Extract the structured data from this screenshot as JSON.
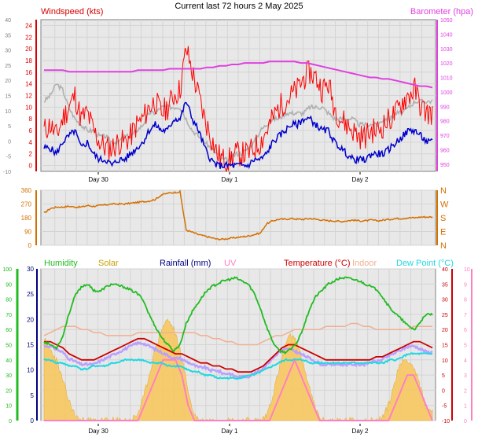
{
  "title": "Current last 72 hours 2 May 2025",
  "colors": {
    "windspeed": "#d80000",
    "windavg": "#0000cc",
    "gust": "#ff0000",
    "baro": "#e040e0",
    "baro_axis": "#e040e0",
    "wind_axis": "#d80000",
    "winddir": "#d47000",
    "humidity": "#22bb22",
    "solar": "#c8a000",
    "solar_fill": "#f8c860",
    "rainfall": "#000080",
    "uv": "#ff80c0",
    "temperature": "#cc0000",
    "indoor": "#f0b090",
    "dewpoint": "#20d8e0",
    "feels": "#b8a0ff",
    "grey_series": "#b0b0b0"
  },
  "chart_data": [
    {
      "type": "line",
      "panel": "wind-baro",
      "labels": {
        "left": "Windspeed (kts)",
        "right": "Barometer (hpa)"
      },
      "x_ticks": [
        "Day 30",
        "Day 1",
        "Day 2"
      ],
      "y_left_a": {
        "ticks": [
          40,
          35,
          30,
          25,
          20,
          15,
          10,
          5,
          0,
          -5,
          -10
        ],
        "range": [
          -10,
          40
        ]
      },
      "y_left_b": {
        "ticks": [
          24,
          22,
          20,
          18,
          16,
          14,
          12,
          10,
          8,
          6,
          4,
          2,
          0
        ],
        "range": [
          -1,
          25
        ]
      },
      "y_right": {
        "ticks": [
          1050,
          1040,
          1030,
          1020,
          1010,
          1000,
          990,
          980,
          970,
          960,
          950
        ],
        "range": [
          945,
          1050
        ]
      },
      "series": [
        {
          "name": "gust",
          "values": [
            6,
            7,
            5,
            8,
            10,
            12,
            8,
            9,
            6,
            4,
            3,
            3,
            4,
            4,
            5,
            7,
            8,
            10,
            11,
            9,
            10,
            12,
            13,
            20,
            16,
            12,
            8,
            5,
            2,
            1,
            1,
            2,
            2,
            2,
            3,
            4,
            6,
            8,
            10,
            11,
            12,
            13,
            15,
            16,
            15,
            13,
            14,
            10,
            8,
            7,
            6,
            5,
            5,
            6,
            6,
            7,
            8,
            9,
            11,
            12,
            13,
            10,
            9
          ]
        },
        {
          "name": "avg",
          "values": [
            3,
            3,
            2,
            4,
            5,
            6,
            3,
            4,
            2,
            1,
            1,
            0,
            1,
            1,
            2,
            3,
            4,
            6,
            7,
            6,
            6,
            8,
            8,
            11,
            8,
            6,
            3,
            1,
            0,
            0,
            0,
            0,
            0,
            0,
            1,
            1,
            2,
            4,
            5,
            6,
            7,
            7,
            8,
            8,
            7,
            6,
            6,
            4,
            3,
            2,
            1,
            1,
            1,
            2,
            2,
            2,
            3,
            4,
            5,
            6,
            6,
            5,
            4
          ]
        },
        {
          "name": "baro",
          "values": [
            1015,
            1015,
            1015,
            1015,
            1014,
            1014,
            1014,
            1014,
            1014,
            1014,
            1014,
            1014,
            1014,
            1014,
            1014,
            1015,
            1015,
            1015,
            1015,
            1015,
            1016,
            1016,
            1016,
            1016,
            1016,
            1016,
            1017,
            1017,
            1018,
            1018,
            1019,
            1019,
            1020,
            1020,
            1020,
            1020,
            1021,
            1021,
            1021,
            1021,
            1021,
            1020,
            1020,
            1019,
            1018,
            1017,
            1016,
            1015,
            1014,
            1013,
            1012,
            1011,
            1010,
            1010,
            1009,
            1009,
            1008,
            1007,
            1006,
            1005,
            1004,
            1004,
            1003
          ]
        },
        {
          "name": "grey",
          "values": [
            11,
            12,
            14,
            13,
            10,
            8,
            7,
            6,
            6,
            5,
            5,
            4,
            4,
            5,
            5,
            6,
            7,
            9,
            9,
            10,
            10,
            10,
            10,
            8,
            6,
            5,
            4,
            3,
            2,
            1,
            1,
            2,
            2,
            3,
            4,
            6,
            7,
            8,
            8,
            9,
            9,
            9,
            9,
            10,
            10,
            10,
            9,
            8,
            8,
            8,
            8,
            7,
            7,
            7,
            7,
            8,
            8,
            9,
            9,
            10,
            11,
            11,
            11
          ]
        }
      ]
    },
    {
      "type": "line",
      "panel": "wind-direction",
      "y_left": {
        "ticks": [
          360,
          270,
          180,
          90,
          0
        ],
        "range": [
          0,
          360
        ]
      },
      "y_right_labels": [
        "N",
        "W",
        "S",
        "E",
        "N"
      ],
      "series": [
        {
          "name": "direction",
          "values": [
            210,
            240,
            250,
            250,
            255,
            250,
            250,
            260,
            255,
            260,
            265,
            270,
            270,
            270,
            275,
            280,
            285,
            290,
            300,
            330,
            340,
            345,
            350,
            100,
            85,
            70,
            60,
            50,
            40,
            40,
            45,
            50,
            55,
            60,
            70,
            80,
            140,
            160,
            170,
            170,
            175,
            170,
            170,
            175,
            170,
            165,
            160,
            160,
            155,
            160,
            165,
            160,
            160,
            165,
            160,
            165,
            170,
            175,
            175,
            180,
            180,
            185,
            185
          ]
        }
      ]
    },
    {
      "type": "line",
      "panel": "temp-humidity",
      "legend": [
        "Humidity",
        "Solar",
        "Rainfall (mm)",
        "UV",
        "Temperature (°C)",
        "Indoor",
        "Dew Point (°C)"
      ],
      "y_humidity": {
        "ticks": [
          100,
          90,
          80,
          70,
          60,
          50,
          40,
          30,
          20,
          10,
          0
        ],
        "range": [
          0,
          100
        ]
      },
      "y_solar": {
        "ticks": [
          30,
          25,
          20,
          15,
          10,
          5,
          0
        ],
        "range": [
          0,
          30
        ]
      },
      "y_temp": {
        "ticks": [
          40,
          35,
          30,
          25,
          20,
          15,
          10,
          5,
          0,
          -5,
          -10
        ],
        "range": [
          -10,
          40
        ]
      },
      "y_uv": {
        "ticks": [
          10,
          9,
          8,
          7,
          6,
          5,
          4,
          3,
          2,
          1,
          0
        ],
        "range": [
          0,
          10
        ]
      },
      "series": [
        {
          "name": "Humidity",
          "values": [
            52,
            50,
            48,
            55,
            70,
            82,
            88,
            90,
            86,
            85,
            88,
            90,
            89,
            88,
            86,
            84,
            80,
            70,
            62,
            55,
            50,
            46,
            50,
            64,
            72,
            78,
            84,
            88,
            90,
            92,
            93,
            94,
            92,
            90,
            84,
            74,
            62,
            52,
            46,
            45,
            47,
            52,
            62,
            74,
            82,
            86,
            90,
            92,
            94,
            94,
            93,
            92,
            90,
            88,
            86,
            80,
            74,
            70,
            66,
            62,
            60,
            66,
            70
          ]
        },
        {
          "name": "Temperature",
          "values": [
            16,
            16,
            15,
            14,
            12,
            11,
            10,
            10,
            10,
            11,
            12,
            13,
            14,
            15,
            16,
            17,
            17,
            16,
            15,
            14,
            13,
            12,
            12,
            11,
            10,
            9,
            9,
            8,
            8,
            7,
            7,
            6,
            6,
            6,
            7,
            8,
            10,
            12,
            14,
            15,
            15,
            14,
            13,
            12,
            11,
            10,
            10,
            10,
            10,
            10,
            10,
            10,
            10,
            11,
            11,
            12,
            13,
            14,
            15,
            16,
            16,
            15,
            14
          ]
        },
        {
          "name": "Dew Point",
          "values": [
            10,
            10,
            9,
            9,
            8,
            8,
            7,
            7,
            8,
            8,
            8,
            9,
            9,
            10,
            10,
            10,
            10,
            9,
            9,
            9,
            8,
            8,
            8,
            7,
            6,
            6,
            5,
            5,
            4,
            4,
            4,
            4,
            4,
            5,
            5,
            6,
            7,
            8,
            9,
            10,
            10,
            10,
            10,
            9,
            9,
            9,
            9,
            9,
            9,
            9,
            9,
            9,
            9,
            9,
            9,
            9,
            10,
            10,
            11,
            12,
            12,
            12,
            12
          ]
        },
        {
          "name": "Indoor",
          "values": [
            18,
            19,
            20,
            21,
            21,
            21,
            20,
            20,
            19,
            19,
            18,
            18,
            18,
            18,
            18,
            19,
            19,
            19,
            19,
            19,
            19,
            19,
            19,
            19,
            19,
            18,
            18,
            17,
            17,
            16,
            16,
            15,
            15,
            15,
            15,
            16,
            17,
            18,
            18,
            19,
            20,
            20,
            20,
            20,
            20,
            21,
            21,
            21,
            21,
            22,
            22,
            21,
            21,
            20,
            20,
            20,
            20,
            20,
            20,
            21,
            21,
            21,
            21
          ]
        },
        {
          "name": "Solar",
          "values": [
            16,
            14,
            12,
            8,
            4,
            1,
            0,
            0,
            0,
            0,
            0,
            0,
            0,
            0,
            0,
            1,
            4,
            9,
            14,
            18,
            20,
            18,
            14,
            8,
            2,
            0,
            0,
            0,
            0,
            0,
            0,
            0,
            0,
            0,
            0,
            0,
            1,
            5,
            10,
            15,
            17,
            15,
            11,
            6,
            2,
            0,
            0,
            0,
            0,
            0,
            0,
            0,
            0,
            0,
            0,
            1,
            4,
            9,
            12,
            12,
            10,
            6,
            2
          ]
        },
        {
          "name": "UV",
          "values": [
            0,
            0,
            0,
            0,
            0,
            0,
            0,
            0,
            0,
            0,
            0,
            0,
            0,
            0,
            0,
            0,
            1,
            2,
            3,
            4,
            4,
            4,
            3,
            1,
            0,
            0,
            0,
            0,
            0,
            0,
            0,
            0,
            0,
            0,
            0,
            0,
            0,
            1,
            2,
            3,
            4,
            3,
            2,
            1,
            0,
            0,
            0,
            0,
            0,
            0,
            0,
            0,
            0,
            0,
            0,
            0,
            1,
            2,
            3,
            3,
            2,
            1,
            0
          ]
        }
      ]
    }
  ]
}
